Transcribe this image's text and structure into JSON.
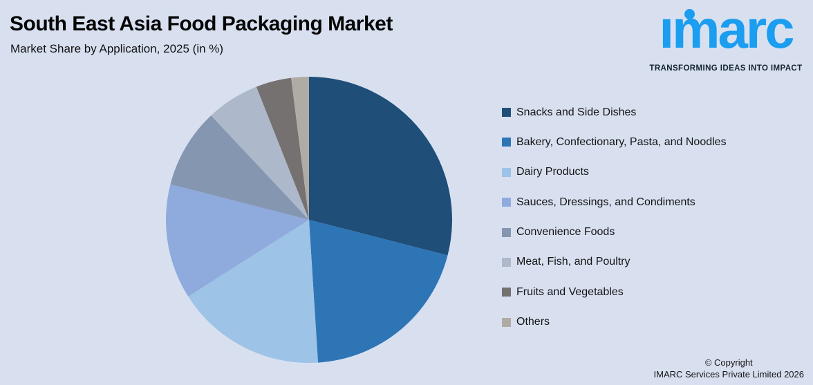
{
  "header": {
    "title": "South East Asia Food Packaging Market",
    "subtitle": "Market Share by Application, 2025 (in %)"
  },
  "logo": {
    "brand": "imarc",
    "tagline": "TRANSFORMING IDEAS INTO IMPACT",
    "brand_color": "#1B9DF0"
  },
  "chart_data": {
    "type": "pie",
    "title": "South East Asia Food Packaging Market",
    "subtitle": "Market Share by Application, 2025 (in %)",
    "unit": "%",
    "start_angle_deg": 0,
    "direction": "clockwise",
    "legend_position": "right",
    "data_labels": false,
    "slices": [
      {
        "label": "Snacks and Side Dishes",
        "value": 29,
        "color": "#1F4E79"
      },
      {
        "label": "Bakery, Confectionary, Pasta, and Noodles",
        "value": 20,
        "color": "#2E75B6"
      },
      {
        "label": "Dairy Products",
        "value": 17,
        "color": "#9DC3E6"
      },
      {
        "label": "Sauces, Dressings, and Condiments",
        "value": 13,
        "color": "#8FAADC"
      },
      {
        "label": "Convenience Foods",
        "value": 9,
        "color": "#8496B0"
      },
      {
        "label": "Meat, Fish, and Poultry",
        "value": 6,
        "color": "#ADB9CA"
      },
      {
        "label": "Fruits and Vegetables",
        "value": 4,
        "color": "#767171"
      },
      {
        "label": "Others",
        "value": 2,
        "color": "#B1ABA5"
      }
    ]
  },
  "footer": {
    "line1": "© Copyright",
    "line2": "IMARC Services Private Limited 2026"
  }
}
